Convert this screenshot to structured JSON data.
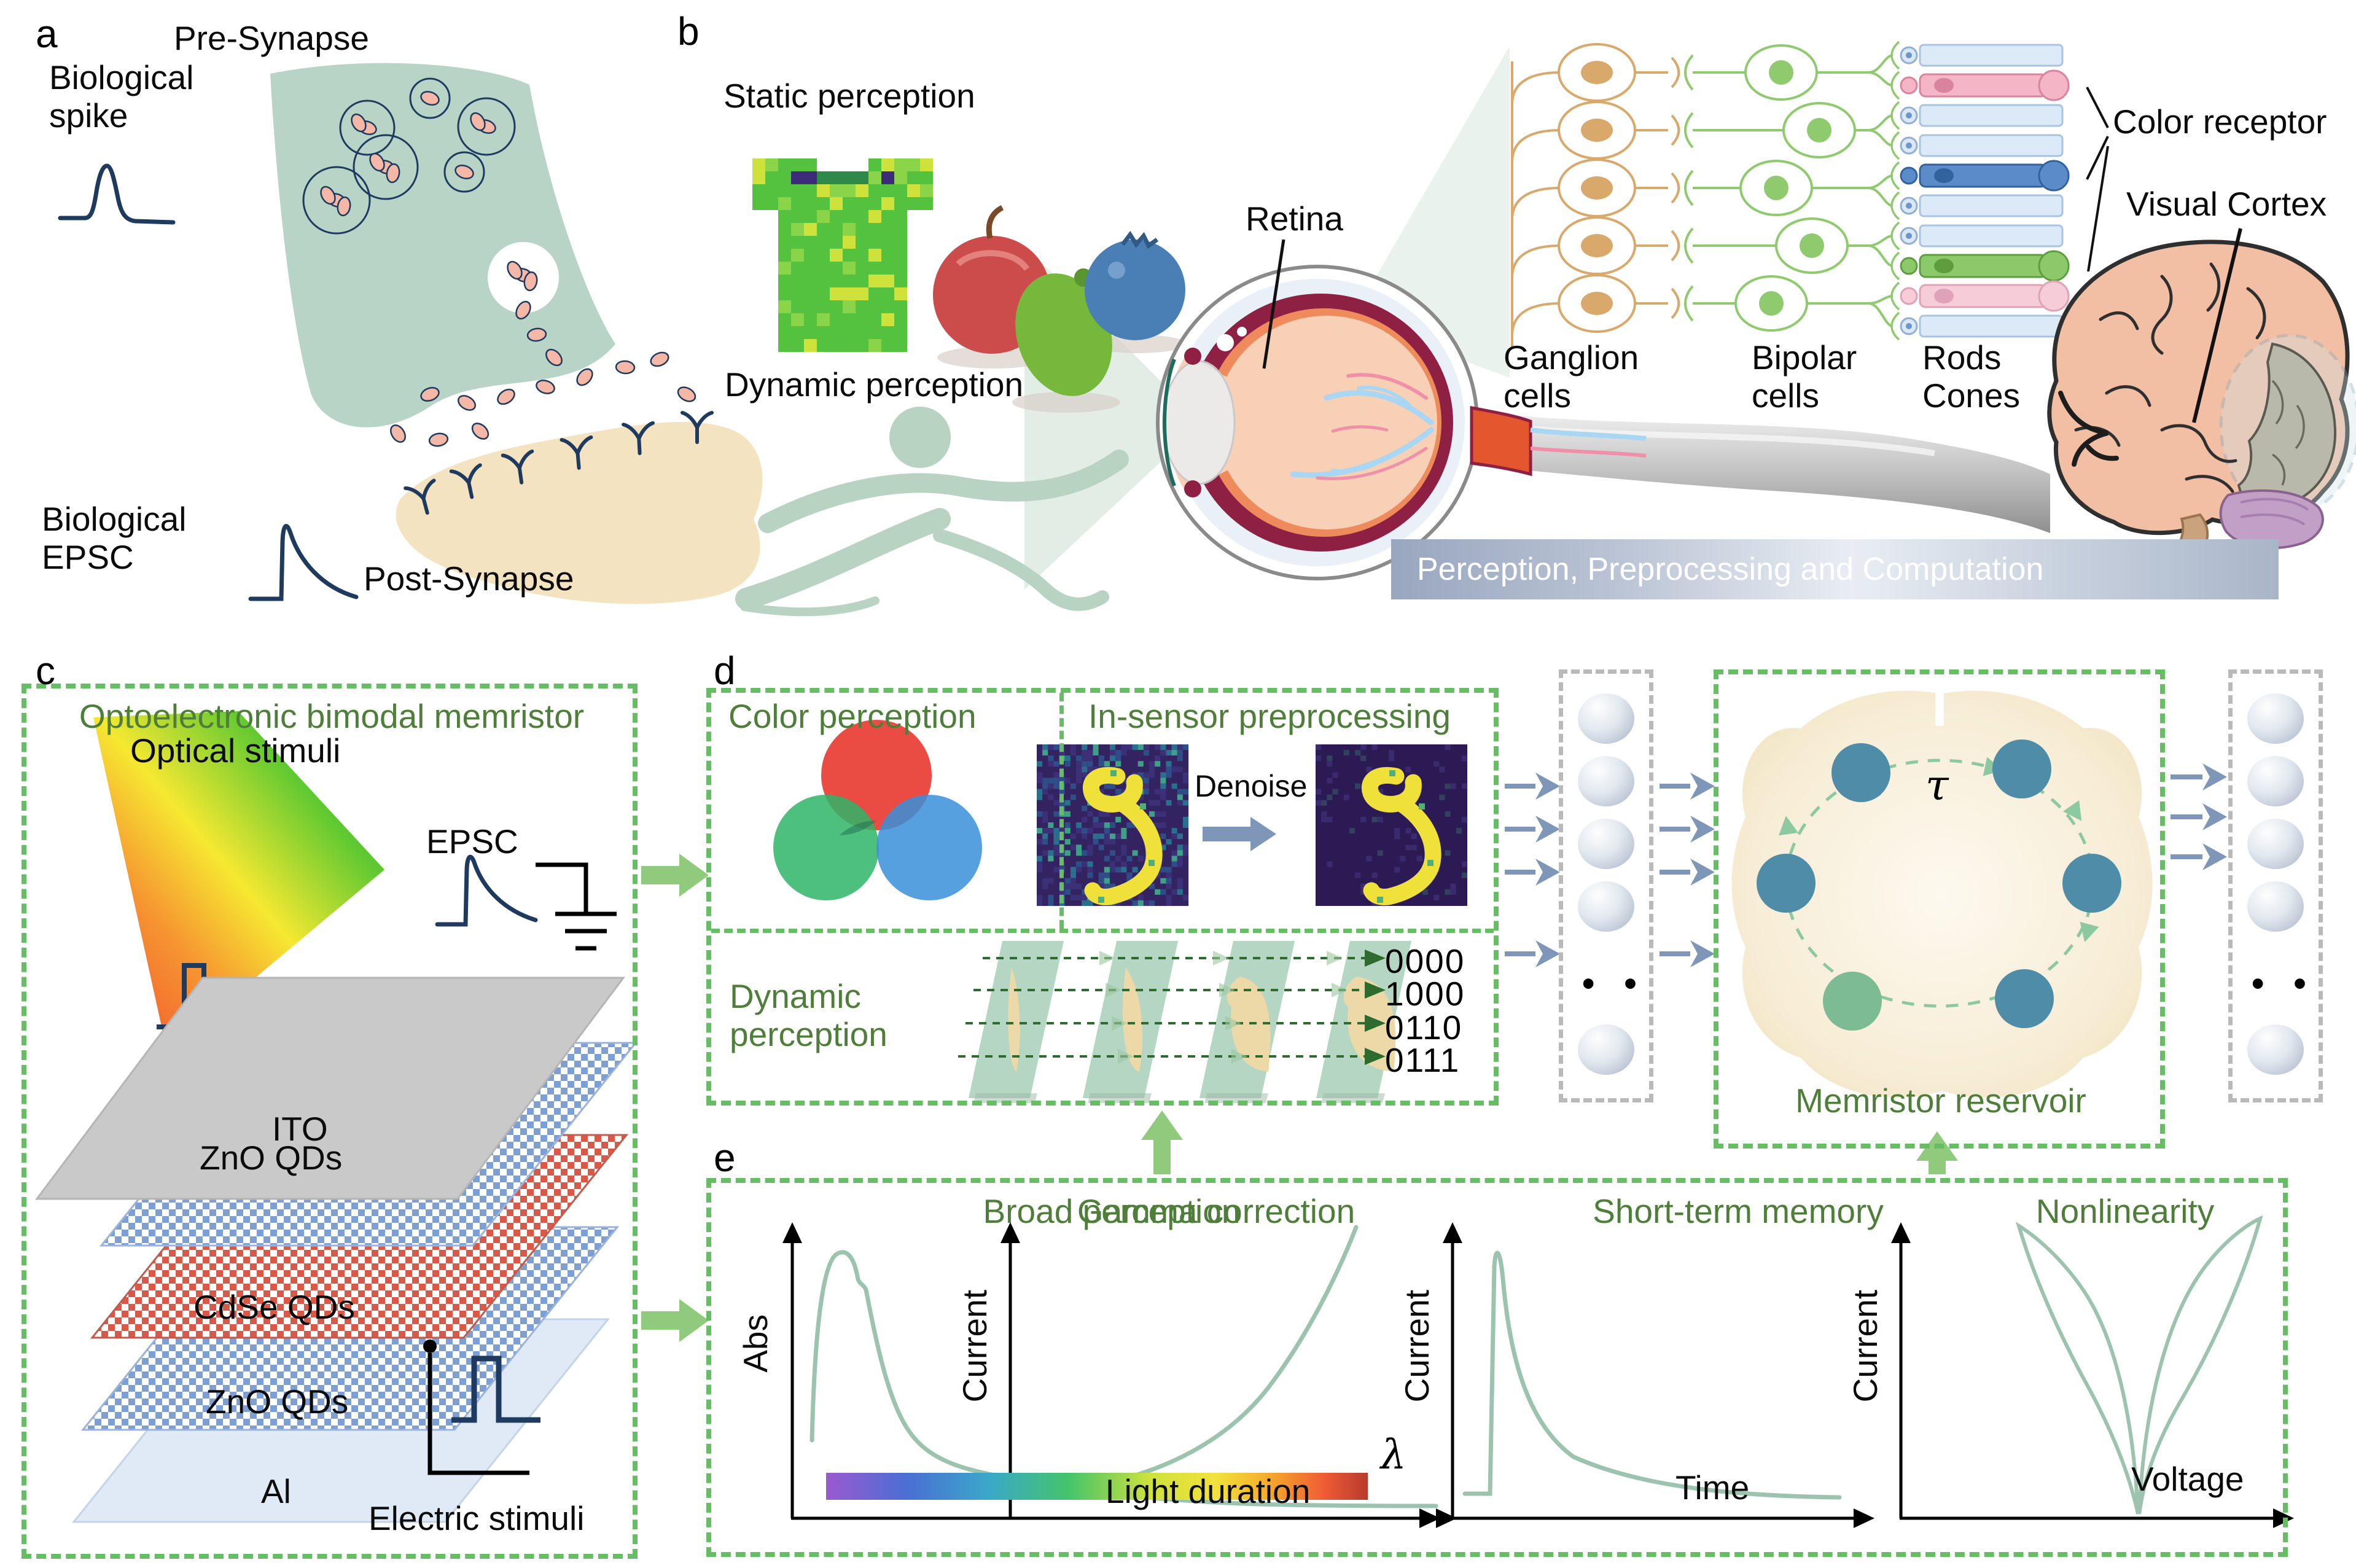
{
  "panels": {
    "a": "a",
    "b": "b",
    "c": "c",
    "d": "d",
    "e": "e"
  },
  "panel_a": {
    "pre_synapse": "Pre-Synapse",
    "post_synapse": "Post-Synapse",
    "biological_spike": "Biological spike",
    "biological_epsc": "Biological EPSC"
  },
  "panel_b": {
    "static": "Static perception",
    "dynamic": "Dynamic perception",
    "retina": "Retina",
    "ganglion": "Ganglion cells",
    "bipolar": "Bipolar cells",
    "rods_cones": "Rods Cones",
    "color_receptor": "Color receptor",
    "visual_cortex": "Visual Cortex",
    "banner": "Perception, Preprocessing and Computation",
    "receptor_pattern": [
      "rod",
      "cone-pink",
      "rod",
      "rod",
      "cone-blue",
      "rod",
      "rod",
      "cone-green",
      "cone-lightpink",
      "rod"
    ]
  },
  "panel_c": {
    "title": "Optoelectronic bimodal memristor",
    "optical": "Optical stimuli",
    "epsc": "EPSC",
    "electric": "Electric stimuli",
    "layers": [
      "ITO",
      "ZnO QDs",
      "CdSe QDs",
      "ZnO QDs",
      "Al"
    ]
  },
  "panel_d": {
    "color_perception": "Color perception",
    "in_sensor": "In-sensor preprocessing",
    "denoise": "Denoise",
    "dynamic": "Dynamic perception",
    "codes": [
      "0000",
      "1000",
      "0110",
      "0111"
    ],
    "reservoir": "Memristor reservoir",
    "tau": "τ",
    "dots": "• •"
  },
  "panel_e": {
    "plots": [
      {
        "title": "Broad perception",
        "ylabel": "Abs",
        "xlabel": "λ"
      },
      {
        "title": "Gamma correction",
        "ylabel": "Current",
        "xlabel": "Light duration"
      },
      {
        "title": "Short-term memory",
        "ylabel": "Current",
        "xlabel": "Time"
      },
      {
        "title": "Nonlinearity",
        "ylabel": "Current",
        "xlabel": "Voltage"
      }
    ]
  },
  "colors": {
    "green_title": "#4e7e3a",
    "border_green": "#67bd63",
    "arrow_green": "#8fca7d",
    "dark_green": "#2e6b2e",
    "navy": "#1e3a5f",
    "sage": "#b9d3c3",
    "curve_sage": "#9cc3ae",
    "arrow_blue": "#7e97b8",
    "pre_blob": "#b8d4c6",
    "post_blob": "#f3e3c0",
    "vesicle": "#f5b8a6",
    "ito_gray": "#c9c9c9",
    "zno_blue": "#7e9fd4",
    "cdse_red": "#d95848",
    "al_blue": "#dfeaf6",
    "rgb_red": "#e8392f",
    "rgb_green": "#2eb567",
    "rgb_blue": "#3a8fd9",
    "mnist_bg_noisy": "#372566",
    "mnist_bg_clean": "#2c1a55",
    "mnist_digit": "#f0e03a",
    "node_teal": "#4e8ca8",
    "node_green": "#7dbb95",
    "reservoir_cream": "#f6ecd2",
    "cone_pink": "#f4b6c6",
    "cone_pink_dark": "#d9849e",
    "cone_blue": "#5b8cc9",
    "cone_blue_dark": "#33639e",
    "cone_green": "#8cc96a",
    "cone_green_dark": "#5f9e3f",
    "cone_lightpink": "#f6ccd8",
    "cone_lightpink_dark": "#e0a2b8",
    "rod_fill": "#dce9f7",
    "rod_stroke": "#a8c4e0",
    "ganglion_tan": "#d9a86b",
    "bipolar_green": "#8fca6e"
  }
}
